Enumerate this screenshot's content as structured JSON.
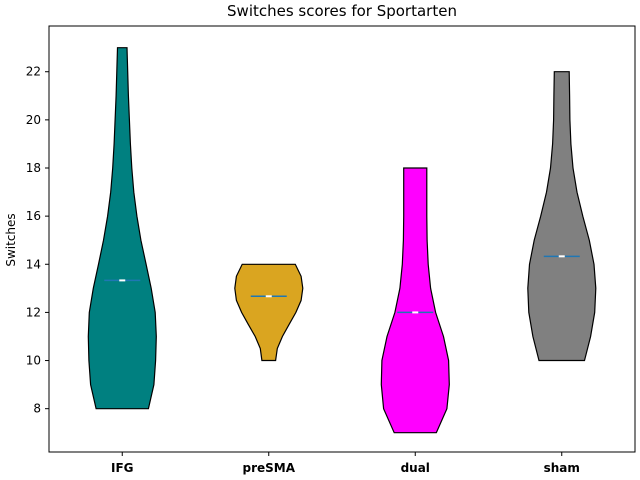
{
  "chart_data": {
    "type": "violin",
    "title": "Switches scores for Sportarten",
    "xlabel": "",
    "ylabel": "Switches",
    "ylim": [
      6.2,
      23.9
    ],
    "yticks": [
      8,
      10,
      12,
      14,
      16,
      18,
      20,
      22
    ],
    "grid": false,
    "categories": [
      "IFG",
      "preSMA",
      "dual",
      "sham"
    ],
    "series": [
      {
        "category": "IFG",
        "color": "#008080",
        "min": 8,
        "max": 23,
        "mean": 13.33,
        "median": 13.33,
        "profile": [
          [
            8,
            0.77
          ],
          [
            9,
            0.93
          ],
          [
            10,
            0.98
          ],
          [
            11,
            1.0
          ],
          [
            12,
            0.97
          ],
          [
            13,
            0.85
          ],
          [
            14,
            0.7
          ],
          [
            15,
            0.55
          ],
          [
            16,
            0.43
          ],
          [
            17,
            0.34
          ],
          [
            18,
            0.28
          ],
          [
            19,
            0.24
          ],
          [
            20,
            0.21
          ],
          [
            21,
            0.18
          ],
          [
            22,
            0.16
          ],
          [
            23,
            0.14
          ]
        ]
      },
      {
        "category": "preSMA",
        "color": "#DAA520",
        "min": 10,
        "max": 14,
        "mean": 12.67,
        "median": 12.67,
        "profile": [
          [
            10,
            0.2
          ],
          [
            10.5,
            0.25
          ],
          [
            11,
            0.4
          ],
          [
            11.5,
            0.6
          ],
          [
            12,
            0.8
          ],
          [
            12.5,
            0.95
          ],
          [
            13,
            1.0
          ],
          [
            13.5,
            0.95
          ],
          [
            14,
            0.78
          ]
        ]
      },
      {
        "category": "dual",
        "color": "#FF00FF",
        "min": 7,
        "max": 18,
        "mean": 12,
        "median": 12,
        "profile": [
          [
            7,
            0.62
          ],
          [
            8,
            0.93
          ],
          [
            9,
            1.0
          ],
          [
            10,
            0.98
          ],
          [
            11,
            0.83
          ],
          [
            12,
            0.6
          ],
          [
            13,
            0.45
          ],
          [
            14,
            0.38
          ],
          [
            15,
            0.35
          ],
          [
            16,
            0.34
          ],
          [
            17,
            0.34
          ],
          [
            18,
            0.34
          ]
        ]
      },
      {
        "category": "sham",
        "color": "#808080",
        "min": 10,
        "max": 22,
        "mean": 14.33,
        "median": 14.33,
        "profile": [
          [
            10,
            0.67
          ],
          [
            11,
            0.85
          ],
          [
            12,
            0.97
          ],
          [
            13,
            1.0
          ],
          [
            14,
            0.95
          ],
          [
            15,
            0.81
          ],
          [
            16,
            0.62
          ],
          [
            17,
            0.45
          ],
          [
            18,
            0.33
          ],
          [
            19,
            0.27
          ],
          [
            20,
            0.24
          ],
          [
            21,
            0.23
          ],
          [
            22,
            0.22
          ]
        ]
      }
    ]
  }
}
